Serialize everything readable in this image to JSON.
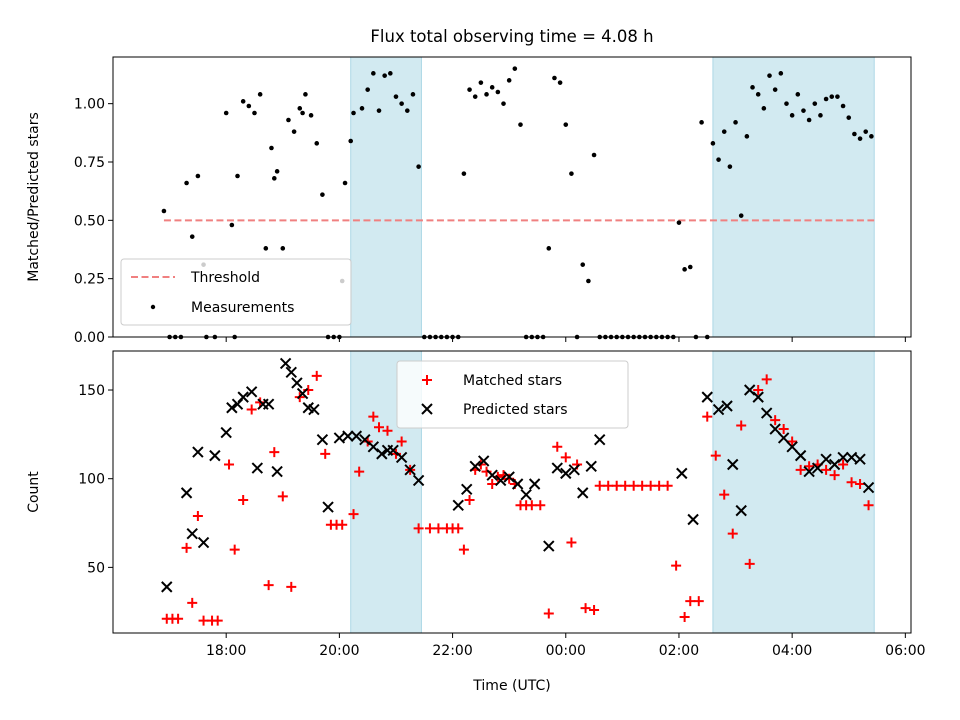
{
  "chart_data": {
    "title": "Flux total observing time = 4.08 h",
    "xlabel": "Time (UTC)",
    "x_unit": "hours UTC (values above 24 = after midnight)",
    "xlim": [
      16.0,
      30.1
    ],
    "xticks": [
      18,
      20,
      22,
      24,
      26,
      28,
      30
    ],
    "xtick_labels": [
      "18:00",
      "20:00",
      "22:00",
      "00:00",
      "02:00",
      "04:00",
      "06:00"
    ],
    "shaded_intervals": [
      [
        20.2,
        21.45
      ],
      [
        26.6,
        29.45
      ]
    ],
    "colors": {
      "shade": "#add8e6",
      "threshold": "#f08080",
      "measurement": "#000000",
      "matched": "#ff0000",
      "predicted": "#000000"
    },
    "panels": [
      {
        "type": "scatter",
        "ylabel": "Matched/Predicted stars",
        "ylim": [
          0,
          1.2
        ],
        "yticks": [
          0.0,
          0.25,
          0.5,
          0.75,
          1.0
        ],
        "ytick_labels": [
          "0.00",
          "0.25",
          "0.50",
          "0.75",
          "1.00"
        ],
        "legend_position": "lower-left",
        "threshold": {
          "name": "Threshold",
          "y": 0.5,
          "x": [
            16.9,
            29.45
          ]
        },
        "series": [
          {
            "name": "Measurements",
            "x": [
              16.9,
              17.0,
              17.1,
              17.2,
              17.3,
              17.4,
              17.5,
              17.6,
              17.65,
              17.8,
              18.0,
              18.1,
              18.15,
              18.2,
              18.3,
              18.4,
              18.5,
              18.6,
              18.7,
              18.8,
              18.85,
              18.9,
              19.0,
              19.1,
              19.2,
              19.3,
              19.35,
              19.4,
              19.5,
              19.6,
              19.7,
              19.8,
              19.9,
              20.0,
              20.05,
              20.1,
              20.2,
              20.25,
              20.4,
              20.5,
              20.6,
              20.7,
              20.8,
              20.9,
              21.0,
              21.1,
              21.2,
              21.3,
              21.4,
              21.5,
              21.6,
              21.7,
              21.8,
              21.9,
              22.0,
              22.1,
              22.2,
              22.3,
              22.4,
              22.5,
              22.6,
              22.7,
              22.8,
              22.9,
              23.0,
              23.1,
              23.2,
              23.3,
              23.4,
              23.5,
              23.6,
              23.7,
              23.8,
              23.9,
              24.0,
              24.1,
              24.2,
              24.3,
              24.4,
              24.5,
              24.6,
              24.7,
              24.8,
              24.9,
              25.0,
              25.1,
              25.2,
              25.3,
              25.4,
              25.5,
              25.6,
              25.7,
              25.8,
              25.9,
              26.0,
              26.1,
              26.2,
              26.3,
              26.4,
              26.5,
              26.6,
              26.7,
              26.8,
              26.9,
              27.0,
              27.1,
              27.2,
              27.3,
              27.4,
              27.5,
              27.6,
              27.7,
              27.8,
              27.9,
              28.0,
              28.1,
              28.2,
              28.3,
              28.4,
              28.5,
              28.6,
              28.7,
              28.8,
              28.9,
              29.0,
              29.1,
              29.2,
              29.3,
              29.4
            ],
            "y": [
              0.54,
              0.0,
              0.0,
              0.0,
              0.66,
              0.43,
              0.69,
              0.31,
              0.0,
              0.0,
              0.96,
              0.48,
              0.0,
              0.69,
              1.01,
              0.99,
              0.96,
              1.04,
              0.38,
              0.81,
              0.68,
              0.71,
              0.38,
              0.93,
              0.88,
              0.98,
              0.96,
              1.04,
              0.95,
              0.83,
              0.61,
              0.0,
              0.0,
              0.0,
              0.24,
              0.66,
              0.84,
              0.96,
              0.98,
              1.06,
              1.13,
              0.97,
              1.12,
              1.13,
              1.03,
              1.0,
              0.97,
              1.04,
              0.73,
              0.0,
              0.0,
              0.0,
              0.0,
              0.0,
              0.0,
              0.0,
              0.7,
              1.06,
              1.03,
              1.09,
              1.04,
              1.07,
              1.05,
              1.0,
              1.1,
              1.15,
              0.91,
              0.0,
              0.0,
              0.0,
              0.0,
              0.38,
              1.11,
              1.09,
              0.91,
              0.7,
              0.0,
              0.31,
              0.24,
              0.78,
              0.0,
              0.0,
              0.0,
              0.0,
              0.0,
              0.0,
              0.0,
              0.0,
              0.0,
              0.0,
              0.0,
              0.0,
              0.0,
              0.0,
              0.49,
              0.29,
              0.3,
              0.0,
              0.92,
              0.0,
              0.83,
              0.76,
              0.88,
              0.73,
              0.92,
              0.52,
              0.86,
              1.07,
              1.04,
              0.98,
              1.12,
              1.06,
              1.13,
              1.0,
              0.95,
              1.04,
              0.97,
              0.93,
              1.0,
              0.95,
              1.02,
              1.03,
              1.03,
              0.99,
              0.94,
              0.87,
              0.85,
              0.88,
              0.86
            ]
          }
        ]
      },
      {
        "type": "scatter",
        "ylabel": "Count",
        "ylim": [
          13,
          172
        ],
        "yticks": [
          50,
          100,
          150
        ],
        "ytick_labels": [
          "50",
          "100",
          "150"
        ],
        "legend_position": "upper-center",
        "series": [
          {
            "name": "Matched stars",
            "marker": "plus",
            "x": [
              16.95,
              17.05,
              17.15,
              17.3,
              17.4,
              17.5,
              17.6,
              17.75,
              17.85,
              18.05,
              18.15,
              18.3,
              18.45,
              18.6,
              18.75,
              18.85,
              19.0,
              19.15,
              19.3,
              19.45,
              19.6,
              19.75,
              19.85,
              19.95,
              20.05,
              20.25,
              20.35,
              20.5,
              20.6,
              20.7,
              20.85,
              21.0,
              21.1,
              21.25,
              21.4,
              21.6,
              21.75,
              21.9,
              22.0,
              22.1,
              22.2,
              22.3,
              22.4,
              22.5,
              22.6,
              22.7,
              22.8,
              22.9,
              23.0,
              23.1,
              23.2,
              23.3,
              23.4,
              23.55,
              23.7,
              23.85,
              24.0,
              24.1,
              24.2,
              24.35,
              24.5,
              24.6,
              24.75,
              24.9,
              25.05,
              25.2,
              25.35,
              25.5,
              25.65,
              25.8,
              25.95,
              26.1,
              26.2,
              26.35,
              26.5,
              26.65,
              26.8,
              26.95,
              27.1,
              27.25,
              27.4,
              27.55,
              27.7,
              27.85,
              28.0,
              28.15,
              28.3,
              28.45,
              28.6,
              28.75,
              28.9,
              29.05,
              29.2,
              29.35
            ],
            "y": [
              21,
              21,
              21,
              61,
              30,
              79,
              20,
              20,
              20,
              108,
              60,
              88,
              139,
              143,
              40,
              115,
              90,
              39,
              146,
              150,
              158,
              114,
              74,
              74,
              74,
              80,
              104,
              121,
              135,
              129,
              127,
              114,
              121,
              105,
              72,
              72,
              72,
              72,
              72,
              72,
              60,
              88,
              105,
              108,
              104,
              97,
              101,
              102,
              100,
              97,
              85,
              85,
              85,
              85,
              24,
              118,
              112,
              64,
              108,
              27,
              26,
              96,
              96,
              96,
              96,
              96,
              96,
              96,
              96,
              96,
              51,
              22,
              31,
              31,
              135,
              113,
              91,
              69,
              130,
              52,
              150,
              156,
              133,
              128,
              121,
              105,
              107,
              108,
              105,
              102,
              108,
              98,
              97,
              85
            ]
          },
          {
            "name": "Predicted stars",
            "marker": "x",
            "x": [
              16.95,
              17.3,
              17.4,
              17.5,
              17.6,
              17.8,
              18.0,
              18.1,
              18.2,
              18.3,
              18.45,
              18.55,
              18.65,
              18.75,
              18.9,
              19.05,
              19.15,
              19.25,
              19.35,
              19.45,
              19.55,
              19.7,
              19.8,
              20.0,
              20.15,
              20.3,
              20.45,
              20.6,
              20.75,
              20.85,
              20.95,
              21.1,
              21.25,
              21.4,
              22.1,
              22.25,
              22.4,
              22.55,
              22.7,
              22.85,
              23.0,
              23.15,
              23.3,
              23.45,
              23.7,
              23.85,
              24.0,
              24.15,
              24.3,
              24.45,
              24.6,
              26.05,
              26.25,
              26.5,
              26.7,
              26.85,
              26.95,
              27.1,
              27.25,
              27.4,
              27.55,
              27.7,
              27.85,
              28.0,
              28.15,
              28.3,
              28.45,
              28.6,
              28.75,
              28.9,
              29.05,
              29.2,
              29.35
            ],
            "y": [
              39,
              92,
              69,
              115,
              64,
              113,
              126,
              140,
              142,
              146,
              149,
              106,
              142,
              142,
              104,
              165,
              160,
              154,
              148,
              140,
              139,
              122,
              84,
              123,
              124,
              124,
              122,
              118,
              114,
              116,
              116,
              112,
              105,
              99,
              85,
              94,
              107,
              110,
              102,
              99,
              101,
              97,
              91,
              97,
              62,
              106,
              103,
              105,
              92,
              107,
              122,
              103,
              77,
              146,
              139,
              141,
              108,
              82,
              150,
              146,
              137,
              128,
              123,
              118,
              113,
              104,
              106,
              111,
              108,
              112,
              112,
              111,
              95
            ]
          }
        ]
      }
    ]
  }
}
